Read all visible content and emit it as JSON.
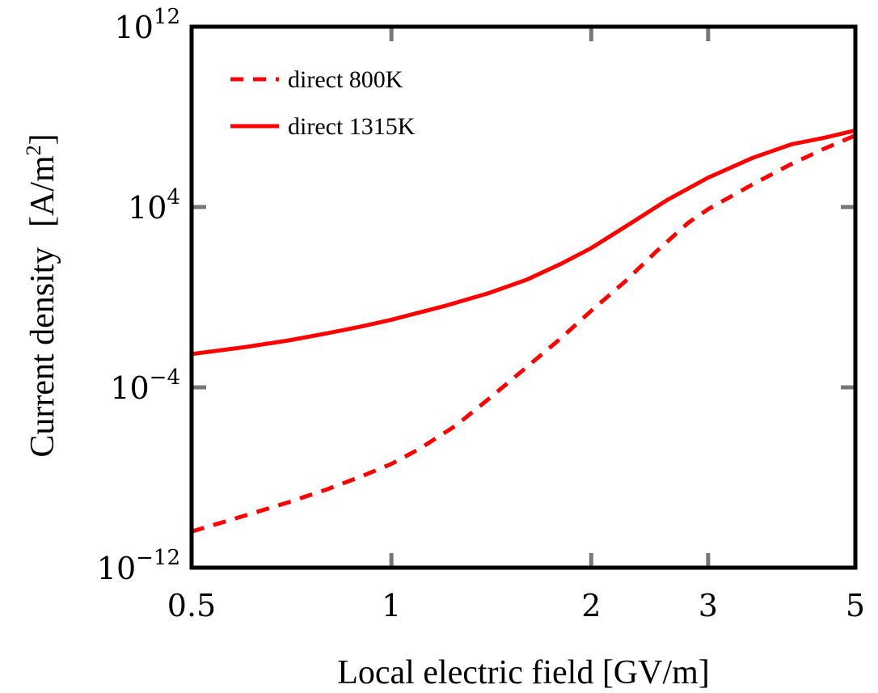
{
  "chart_data": {
    "type": "line",
    "title": "",
    "xlabel": "Local electric field [GV/m]",
    "ylabel": "Current density",
    "ylabel_unit_prefix": "A/m",
    "ylabel_unit_exp": "2",
    "xscale": "log",
    "yscale": "log",
    "xlim": [
      0.5,
      5
    ],
    "ylim": [
      1e-12,
      1000000000000.0
    ],
    "xticks": [
      {
        "value": 0.5,
        "label": "0.5"
      },
      {
        "value": 1,
        "label": "1"
      },
      {
        "value": 2,
        "label": "2"
      },
      {
        "value": 3,
        "label": "3"
      },
      {
        "value": 5,
        "label": "5"
      }
    ],
    "yticks": [
      {
        "value": 1000000000000.0,
        "base": "10",
        "exp": "12"
      },
      {
        "value": 10000.0,
        "base": "10",
        "exp": "4"
      },
      {
        "value": 0.0001,
        "base": "10",
        "exp": "−4"
      },
      {
        "value": 1e-12,
        "base": "10",
        "exp": "−12"
      }
    ],
    "legend_position": "top-left",
    "grid": false,
    "series": [
      {
        "name": "direct 800K",
        "color": "#ff0000",
        "style": "dashed",
        "x": [
          0.5,
          0.6,
          0.7,
          0.8,
          0.9,
          1.0,
          1.1,
          1.25,
          1.4,
          1.6,
          1.8,
          2.0,
          2.25,
          2.5,
          2.8,
          3.0,
          3.5,
          4.0,
          4.5,
          5.0
        ],
        "y": [
          4e-11,
          2e-10,
          8e-10,
          3e-09,
          1.1e-08,
          4e-08,
          1.8e-07,
          2e-06,
          3e-05,
          0.0008,
          0.015,
          0.25,
          5,
          100,
          2000,
          8000,
          100000.0,
          800000.0,
          4000000.0,
          15000000.0
        ]
      },
      {
        "name": "direct 1315K",
        "color": "#ff0000",
        "style": "solid",
        "x": [
          0.5,
          0.6,
          0.7,
          0.8,
          0.9,
          1.0,
          1.2,
          1.4,
          1.6,
          1.8,
          2.0,
          2.3,
          2.6,
          3.0,
          3.5,
          4.0,
          4.5,
          5.0
        ],
        "y": [
          0.003,
          0.006,
          0.012,
          0.025,
          0.05,
          0.1,
          0.4,
          1.5,
          6,
          30,
          150,
          2000,
          20000.0,
          200000.0,
          1500000.0,
          6000000.0,
          12000000.0,
          25000000.0
        ]
      }
    ]
  }
}
